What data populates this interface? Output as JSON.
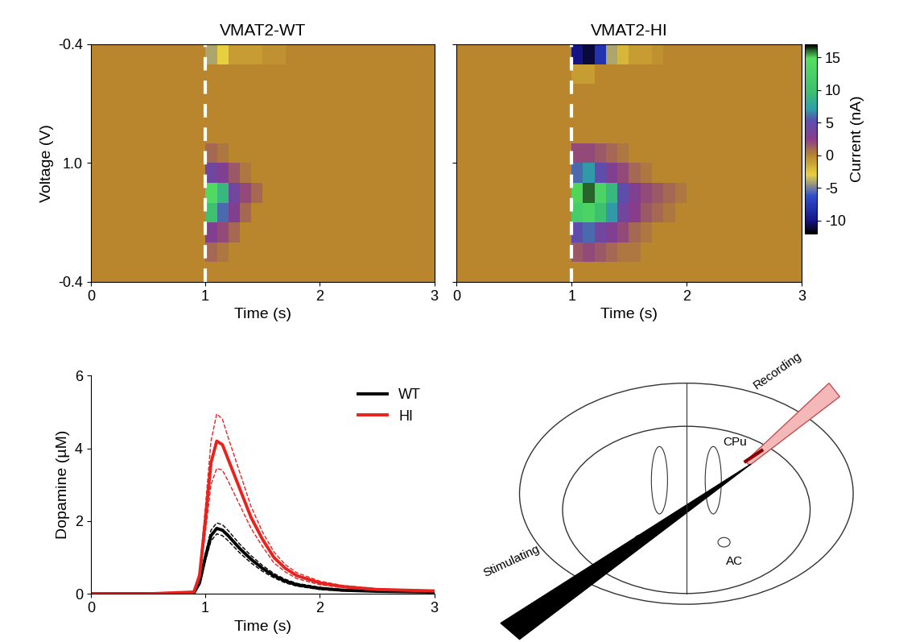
{
  "chart_data": [
    {
      "type": "heatmap",
      "title": "VMAT2-WT",
      "x_label": "Time (s)",
      "y_label": "Voltage (V)",
      "xlim": [
        0,
        3
      ],
      "xticks": [
        0,
        1,
        2,
        3
      ],
      "y_categories": [
        "-0.4",
        "1.0",
        "-0.4"
      ],
      "stimulation_time": 1,
      "cells": [
        [
          0,
          0,
          0,
          0,
          0,
          0,
          0,
          0,
          0,
          0,
          -4,
          -3,
          -1,
          -1,
          -1,
          -0.5,
          -0.5,
          0,
          0,
          0,
          0,
          0,
          0,
          0,
          0,
          0,
          0,
          0,
          0,
          0
        ],
        [
          0,
          0,
          0,
          0,
          0,
          0,
          0,
          0,
          0,
          0,
          0,
          0,
          0,
          0,
          0,
          0,
          0,
          0,
          0,
          0,
          0,
          0,
          0,
          0,
          0,
          0,
          0,
          0,
          0,
          0
        ],
        [
          0,
          0,
          0,
          0,
          0,
          0,
          0,
          0,
          0,
          0,
          0,
          0,
          0,
          0,
          0,
          0,
          0,
          0,
          0,
          0,
          0,
          0,
          0,
          0,
          0,
          0,
          0,
          0,
          0,
          0
        ],
        [
          0,
          0,
          0,
          0,
          0,
          0,
          0,
          0,
          0,
          0,
          0,
          0,
          0,
          0,
          0,
          0,
          0,
          0,
          0,
          0,
          0,
          0,
          0,
          0,
          0,
          0,
          0,
          0,
          0,
          0
        ],
        [
          0,
          0,
          0,
          0,
          0,
          0,
          0,
          0,
          0,
          0,
          0,
          0,
          0,
          0,
          0,
          0,
          0,
          0,
          0,
          0,
          0,
          0,
          0,
          0,
          0,
          0,
          0,
          0,
          0,
          0
        ],
        [
          0,
          0,
          0,
          0,
          0,
          0,
          0,
          0,
          0,
          0,
          1,
          0.5,
          0,
          0,
          0,
          0,
          0,
          0,
          0,
          0,
          0,
          0,
          0,
          0,
          0,
          0,
          0,
          0,
          0,
          0
        ],
        [
          0,
          0,
          0,
          0,
          0,
          0,
          0,
          0,
          0,
          0,
          4,
          3,
          1.5,
          0.5,
          0,
          0,
          0,
          0,
          0,
          0,
          0,
          0,
          0,
          0,
          0,
          0,
          0,
          0,
          0,
          0
        ],
        [
          0,
          0,
          0,
          0,
          0,
          0,
          0,
          0,
          0,
          0,
          14,
          9,
          4,
          2,
          1,
          0,
          0,
          0,
          0,
          0,
          0,
          0,
          0,
          0,
          0,
          0,
          0,
          0,
          0,
          0
        ],
        [
          0,
          0,
          0,
          0,
          0,
          0,
          0,
          0,
          0,
          0,
          10,
          6,
          3,
          1,
          0,
          0,
          0,
          0,
          0,
          0,
          0,
          0,
          0,
          0,
          0,
          0,
          0,
          0,
          0,
          0
        ],
        [
          0,
          0,
          0,
          0,
          0,
          0,
          0,
          0,
          0,
          0,
          3,
          2,
          1,
          0,
          0,
          0,
          0,
          0,
          0,
          0,
          0,
          0,
          0,
          0,
          0,
          0,
          0,
          0,
          0,
          0
        ],
        [
          0,
          0,
          0,
          0,
          0,
          0,
          0,
          0,
          0,
          0,
          1,
          0.5,
          0,
          0,
          0,
          0,
          0,
          0,
          0,
          0,
          0,
          0,
          0,
          0,
          0,
          0,
          0,
          0,
          0,
          0
        ],
        [
          0,
          0,
          0,
          0,
          0,
          0,
          0,
          0,
          0,
          0,
          0,
          0,
          0,
          0,
          0,
          0,
          0,
          0,
          0,
          0,
          0,
          0,
          0,
          0,
          0,
          0,
          0,
          0,
          0,
          0
        ]
      ]
    },
    {
      "type": "heatmap",
      "title": "VMAT2-HI",
      "x_label": "Time (s)",
      "xlim": [
        0,
        3
      ],
      "xticks": [
        0,
        1,
        2,
        3
      ],
      "y_categories": [
        "-0.4",
        "1.0",
        "-0.4"
      ],
      "tick_labels": "x",
      "stimulation_time": 1,
      "cells": [
        [
          0,
          0,
          0,
          0,
          0,
          0,
          0,
          0,
          0,
          0,
          -10,
          -11,
          -8,
          -4,
          -2,
          -1,
          -1,
          -0.5,
          0,
          0,
          0,
          0,
          0,
          0,
          0,
          0,
          0,
          0,
          0,
          0
        ],
        [
          0,
          0,
          0,
          0,
          0,
          0,
          0,
          0,
          0,
          0,
          -1,
          -1,
          0,
          0,
          0,
          0,
          0,
          0,
          0,
          0,
          0,
          0,
          0,
          0,
          0,
          0,
          0,
          0,
          0,
          0
        ],
        [
          0,
          0,
          0,
          0,
          0,
          0,
          0,
          0,
          0,
          0,
          0,
          0,
          0,
          0,
          0,
          0,
          0,
          0,
          0,
          0,
          0,
          0,
          0,
          0,
          0,
          0,
          0,
          0,
          0,
          0
        ],
        [
          0,
          0,
          0,
          0,
          0,
          0,
          0,
          0,
          0,
          0,
          0,
          0,
          0,
          0,
          0,
          0,
          0,
          0,
          0,
          0,
          0,
          0,
          0,
          0,
          0,
          0,
          0,
          0,
          0,
          0
        ],
        [
          0,
          0,
          0,
          0,
          0,
          0,
          0,
          0,
          0,
          0,
          0,
          0,
          0,
          0,
          0,
          0,
          0,
          0,
          0,
          0,
          0,
          0,
          0,
          0,
          0,
          0,
          0,
          0,
          0,
          0
        ],
        [
          0,
          0,
          0,
          0,
          0,
          0,
          0,
          0,
          0,
          0,
          2,
          2,
          1.5,
          1,
          0.5,
          0,
          0,
          0,
          0,
          0,
          0,
          0,
          0,
          0,
          0,
          0,
          0,
          0,
          0,
          0
        ],
        [
          0,
          0,
          0,
          0,
          0,
          0,
          0,
          0,
          0,
          0,
          6,
          7,
          5,
          3,
          2,
          1,
          0.5,
          0,
          0,
          0,
          0,
          0,
          0,
          0,
          0,
          0,
          0,
          0,
          0,
          0
        ],
        [
          0,
          0,
          0,
          0,
          0,
          0,
          0,
          0,
          0,
          0,
          15,
          16,
          13,
          9,
          5,
          3,
          2,
          1.5,
          1,
          0.5,
          0,
          0,
          0,
          0,
          0,
          0,
          0,
          0,
          0,
          0
        ],
        [
          0,
          0,
          0,
          0,
          0,
          0,
          0,
          0,
          0,
          0,
          12,
          13,
          10,
          7,
          4,
          2.5,
          1.5,
          1,
          0.5,
          0,
          0,
          0,
          0,
          0,
          0,
          0,
          0,
          0,
          0,
          0
        ],
        [
          0,
          0,
          0,
          0,
          0,
          0,
          0,
          0,
          0,
          0,
          5,
          6,
          4,
          3,
          2,
          1,
          0.5,
          0,
          0,
          0,
          0,
          0,
          0,
          0,
          0,
          0,
          0,
          0,
          0,
          0
        ],
        [
          0,
          0,
          0,
          0,
          0,
          0,
          0,
          0,
          0,
          0,
          1.5,
          2,
          1.5,
          1,
          0.5,
          0.5,
          0,
          0,
          0,
          0,
          0,
          0,
          0,
          0,
          0,
          0,
          0,
          0,
          0,
          0
        ],
        [
          0,
          0,
          0,
          0,
          0,
          0,
          0,
          0,
          0,
          0,
          0,
          0,
          0,
          0,
          0,
          0,
          0,
          0,
          0,
          0,
          0,
          0,
          0,
          0,
          0,
          0,
          0,
          0,
          0,
          0
        ]
      ],
      "colorbar": {
        "label": "Current (nA)",
        "range": [
          -12,
          17
        ],
        "ticks": [
          -10,
          -5,
          0,
          5,
          10,
          15
        ]
      }
    },
    {
      "type": "line",
      "x_label": "Time (s)",
      "y_label": "Dopamine (µM)",
      "xlim": [
        0,
        3
      ],
      "xticks": [
        0,
        1,
        2,
        3
      ],
      "ylim": [
        0,
        6
      ],
      "yticks": [
        0,
        2,
        4,
        6
      ],
      "legend": "upper right",
      "x": [
        0,
        0.5,
        0.9,
        0.95,
        1.0,
        1.05,
        1.1,
        1.15,
        1.2,
        1.3,
        1.4,
        1.5,
        1.6,
        1.7,
        1.8,
        2.0,
        2.2,
        2.5,
        3.0
      ],
      "series": [
        {
          "name": "WT",
          "color": "#000000",
          "values": [
            0,
            0,
            0.02,
            0.3,
            1.0,
            1.6,
            1.8,
            1.75,
            1.6,
            1.25,
            0.95,
            0.7,
            0.5,
            0.35,
            0.25,
            0.15,
            0.1,
            0.07,
            0.05
          ],
          "error": [
            0,
            0,
            0.01,
            0.05,
            0.1,
            0.15,
            0.15,
            0.15,
            0.14,
            0.12,
            0.1,
            0.08,
            0.06,
            0.05,
            0.04,
            0.03,
            0.02,
            0.01,
            0.01
          ]
        },
        {
          "name": "HI",
          "color": "#e8231f",
          "values": [
            0,
            0,
            0.05,
            0.5,
            2.0,
            3.6,
            4.2,
            4.1,
            3.7,
            2.9,
            2.1,
            1.5,
            1.0,
            0.7,
            0.5,
            0.3,
            0.2,
            0.12,
            0.08
          ],
          "error": [
            0,
            0,
            0.01,
            0.1,
            0.35,
            0.6,
            0.75,
            0.7,
            0.6,
            0.45,
            0.3,
            0.2,
            0.15,
            0.1,
            0.08,
            0.05,
            0.03,
            0.02,
            0.01
          ]
        }
      ]
    }
  ],
  "diagram": {
    "labels": [
      "Recording",
      "CPu",
      "AC",
      "Stimulating"
    ]
  }
}
